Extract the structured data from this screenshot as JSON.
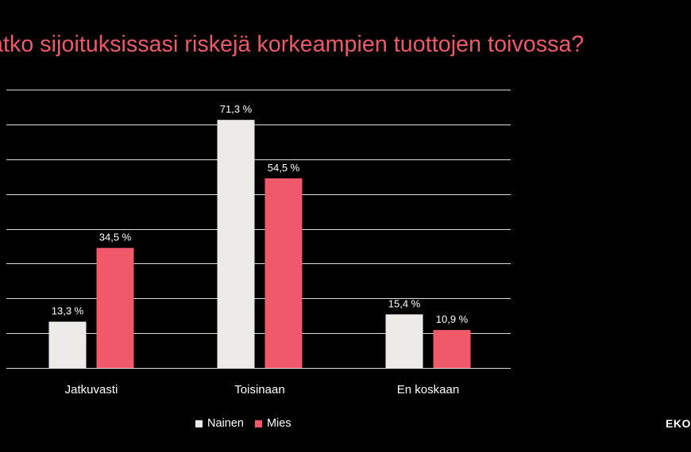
{
  "title": "atko sijoituksissasi riskejä korkeampien tuottojen toivossa?",
  "logo_text": "EKON",
  "colors": {
    "background": "#000000",
    "title": "#F0596A",
    "nainen": "#EDEBE8",
    "mies": "#F0596A",
    "grid": "#D9D9D9"
  },
  "chart_data": {
    "type": "bar",
    "categories": [
      "Jatkuvasti",
      "Toisinaan",
      "En koskaan"
    ],
    "series": [
      {
        "name": "Nainen",
        "values": [
          13.3,
          71.3,
          15.4
        ],
        "labels": [
          "13,3 %",
          "71,3 %",
          "15,4 %"
        ]
      },
      {
        "name": "Mies",
        "values": [
          34.5,
          54.5,
          10.9
        ],
        "labels": [
          "34,5 %",
          "54,5 %",
          "10,9 %"
        ]
      }
    ],
    "ylim": [
      0,
      80
    ],
    "grid": true,
    "legend_position": "bottom"
  }
}
